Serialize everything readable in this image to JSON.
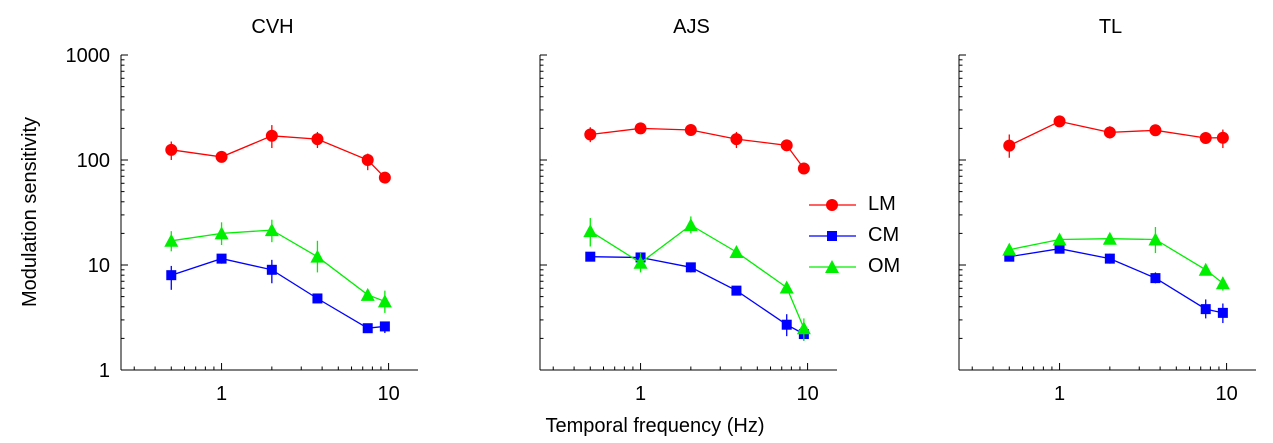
{
  "figure": {
    "ylabel": "Modulation sensitivity",
    "xlabel": "Temporal frequency (Hz)",
    "series_style": {
      "LM": {
        "color": "#ff0000",
        "marker": "circle"
      },
      "CM": {
        "color": "#0000ff",
        "marker": "square"
      },
      "OM": {
        "color": "#00ee00",
        "marker": "triangle"
      }
    }
  },
  "legend": {
    "items": [
      {
        "name": "LM",
        "color": "#ff0000",
        "marker": "circle"
      },
      {
        "name": "CM",
        "color": "#0000ff",
        "marker": "square"
      },
      {
        "name": "OM",
        "color": "#00ee00",
        "marker": "triangle"
      }
    ]
  },
  "chart_data": [
    {
      "type": "line",
      "title": "CVH",
      "x_scale": "log",
      "y_scale": "log",
      "xlim": [
        0.25,
        15
      ],
      "ylim": [
        1,
        1000
      ],
      "x_tick_labels": [
        "1",
        "10"
      ],
      "y_tick_labels": [
        "1",
        "10",
        "100",
        "1000"
      ],
      "series": [
        {
          "name": "LM",
          "x": [
            0.5,
            1,
            2,
            3.75,
            7.5,
            9.5
          ],
          "y": [
            125,
            107,
            170,
            158,
            100,
            68
          ],
          "err": [
            [
              100,
              150
            ],
            null,
            [
              130,
              215
            ],
            [
              130,
              185
            ],
            [
              80,
              115
            ],
            null
          ]
        },
        {
          "name": "CM",
          "x": [
            0.5,
            1,
            2,
            3.75,
            7.5,
            9.5
          ],
          "y": [
            8,
            11.5,
            9,
            4.8,
            2.5,
            2.6
          ],
          "err": [
            [
              5.8,
              9.8
            ],
            [
              10.3,
              12.3
            ],
            [
              6.7,
              11.2
            ],
            null,
            [
              2.25,
              2.75
            ],
            [
              2.25,
              2.85
            ]
          ]
        },
        {
          "name": "OM",
          "x": [
            0.5,
            1,
            2,
            3.75,
            7.5,
            9.5
          ],
          "y": [
            17,
            20,
            21.5,
            12,
            5.2,
            4.5
          ],
          "err": [
            [
              13.5,
              21
            ],
            [
              15.5,
              25.5
            ],
            [
              16.5,
              27
            ],
            [
              8.5,
              17
            ],
            null,
            [
              3.5,
              5.7
            ]
          ]
        }
      ]
    },
    {
      "type": "line",
      "title": "AJS",
      "x_scale": "log",
      "y_scale": "log",
      "xlim": [
        0.25,
        15
      ],
      "ylim": [
        1,
        1000
      ],
      "x_tick_labels": [
        "1",
        "10"
      ],
      "y_tick_labels": [],
      "series": [
        {
          "name": "LM",
          "x": [
            0.5,
            1,
            2,
            3.75,
            7.5,
            9.5
          ],
          "y": [
            175,
            200,
            193,
            158,
            138,
            83
          ],
          "err": [
            [
              148,
              205
            ],
            null,
            null,
            [
              130,
              185
            ],
            null,
            null
          ]
        },
        {
          "name": "CM",
          "x": [
            0.5,
            1,
            2,
            3.75,
            7.5,
            9.5
          ],
          "y": [
            12,
            11.8,
            9.5,
            5.7,
            2.7,
            2.2
          ],
          "err": [
            null,
            null,
            [
              8.5,
              10.5
            ],
            null,
            [
              2.1,
              3.4
            ],
            [
              1.9,
              2.45
            ]
          ]
        },
        {
          "name": "OM",
          "x": [
            0.5,
            1,
            2,
            3.75,
            7.5,
            9.5
          ],
          "y": [
            21,
            10.5,
            24,
            13.3,
            6.1,
            2.5
          ],
          "err": [
            [
              15,
              28
            ],
            [
              8.5,
              13
            ],
            [
              20,
              29
            ],
            null,
            null,
            [
              1.9,
              3.1
            ]
          ]
        }
      ]
    },
    {
      "type": "line",
      "title": "TL",
      "x_scale": "log",
      "y_scale": "log",
      "xlim": [
        0.25,
        15
      ],
      "ylim": [
        1,
        1000
      ],
      "x_tick_labels": [
        "1",
        "10"
      ],
      "y_tick_labels": [],
      "series": [
        {
          "name": "LM",
          "x": [
            0.5,
            1,
            2,
            3.75,
            7.5,
            9.5
          ],
          "y": [
            137,
            233,
            183,
            192,
            162,
            163
          ],
          "err": [
            [
              105,
              175
            ],
            null,
            [
              160,
              210
            ],
            null,
            null,
            [
              130,
              195
            ]
          ]
        },
        {
          "name": "CM",
          "x": [
            0.5,
            1,
            2,
            3.75,
            7.5,
            9.5
          ],
          "y": [
            12,
            14.3,
            11.5,
            7.5,
            3.8,
            3.5
          ],
          "err": [
            null,
            null,
            [
              10.3,
              12.8
            ],
            [
              6.7,
              8.5
            ],
            [
              3.1,
              4.7
            ],
            [
              2.8,
              4.3
            ]
          ]
        },
        {
          "name": "OM",
          "x": [
            0.5,
            1,
            2,
            3.75,
            7.5,
            9.5
          ],
          "y": [
            14,
            17.5,
            17.8,
            17.5,
            9,
            6.7
          ],
          "err": [
            null,
            null,
            null,
            [
              13,
              23
            ],
            null,
            [
              5.7,
              7.7
            ]
          ]
        }
      ]
    }
  ]
}
